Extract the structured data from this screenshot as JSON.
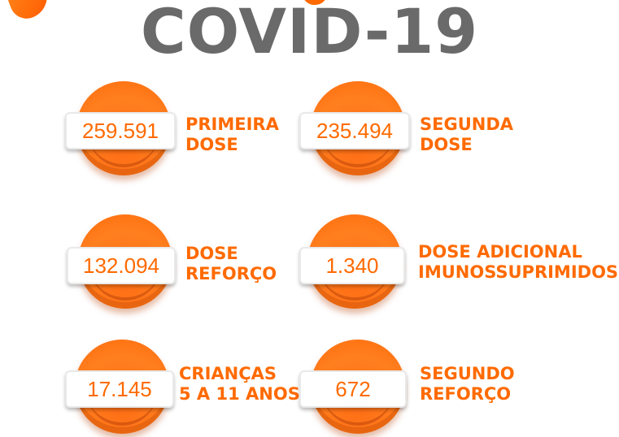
{
  "header": {
    "title": "COVID-19"
  },
  "stats": [
    {
      "value": "259.591",
      "label_line1": "PRIMEIRA",
      "label_line2": "DOSE"
    },
    {
      "value": "235.494",
      "label_line1": "SEGUNDA",
      "label_line2": "DOSE"
    },
    {
      "value": "132.094",
      "label_line1": "DOSE",
      "label_line2": "REFORÇO"
    },
    {
      "value": "1.340",
      "label_line1": "DOSE ADICIONAL",
      "label_line2": "IMUNOSSUPRIMIDOS"
    },
    {
      "value": "17.145",
      "label_line1": "CRIANÇAS",
      "label_line2": "5 A 11 ANOS"
    },
    {
      "value": "672",
      "label_line1": "SEGUNDO",
      "label_line2": "REFORÇO"
    }
  ],
  "colors": {
    "accent": "#ff6a00",
    "title": "#6a6a6a",
    "background": "#ffffff"
  }
}
